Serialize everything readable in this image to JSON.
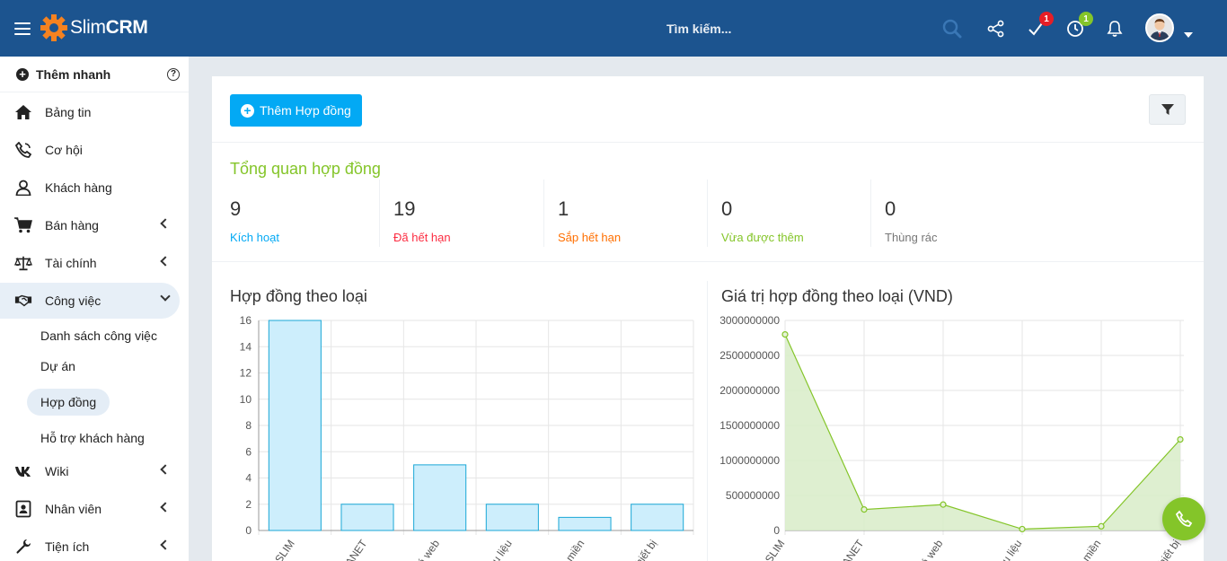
{
  "app": {
    "logo_light": "Slim",
    "logo_bold": "CRM",
    "brand_color": "#1c548f"
  },
  "header": {
    "search_placeholder": "Tìm kiếm...",
    "tasks_badge": "1",
    "timer_badge": "1"
  },
  "sidebar": {
    "quick_add": "Thêm nhanh",
    "items": [
      {
        "label": "Bảng tin",
        "icon": "home-icon"
      },
      {
        "label": "Cơ hội",
        "icon": "phone-icon"
      },
      {
        "label": "Khách hàng",
        "icon": "user-icon"
      },
      {
        "label": "Bán hàng",
        "icon": "cart-icon"
      },
      {
        "label": "Tài chính",
        "icon": "balance-scale-icon"
      },
      {
        "label": "Công việc",
        "icon": "handshake-icon"
      },
      {
        "label": "Wiki",
        "icon": "vk-icon"
      },
      {
        "label": "Nhân viên",
        "icon": "id-card-icon"
      },
      {
        "label": "Tiện ích",
        "icon": "wrench-icon"
      }
    ],
    "sub_items": [
      {
        "label": "Danh sách công việc"
      },
      {
        "label": "Dự án"
      },
      {
        "label": "Hợp đồng"
      },
      {
        "label": "Hỗ trợ khách hàng"
      }
    ]
  },
  "main": {
    "add_button": "Thêm Hợp đồng",
    "overview_title": "Tổng quan hợp đồng",
    "stats": [
      {
        "value": "9",
        "label": "Kích hoạt",
        "color": "#03a9f4"
      },
      {
        "value": "19",
        "label": "Đã hết hạn",
        "color": "#fc2d42"
      },
      {
        "value": "1",
        "label": "Sắp hết hạn",
        "color": "#ff6f00"
      },
      {
        "value": "0",
        "label": "Vừa được thêm",
        "color": "#84c529"
      },
      {
        "value": "0",
        "label": "Thùng rác",
        "color": "#777777"
      }
    ]
  },
  "chart_data": [
    {
      "type": "bar",
      "title": "Hợp đồng theo loại",
      "categories": [
        "SLIM",
        "ANET",
        "á web",
        "ữu liệu",
        "miền",
        "hiết bị"
      ],
      "values": [
        16,
        2,
        5,
        2,
        1,
        2
      ],
      "ylim": [
        0,
        16
      ],
      "yticks": [
        "0",
        "2",
        "4",
        "6",
        "8",
        "10",
        "12",
        "14",
        "16"
      ],
      "bar_fill": "#cdeefc",
      "bar_stroke": "#1aa7d6",
      "grid": true
    },
    {
      "type": "area",
      "title": "Giá trị hợp đồng theo loại (VND)",
      "categories": [
        "SLIM",
        "ANET",
        "á web",
        "ữu liệu",
        "miền",
        "hiết bị"
      ],
      "values": [
        2800000000,
        300000000,
        370000000,
        20000000,
        60000000,
        1300000000
      ],
      "ylim": [
        0,
        3000000000
      ],
      "yticks": [
        "0",
        "500000000",
        "1000000000",
        "1500000000",
        "2000000000",
        "2500000000",
        "3000000000"
      ],
      "line_color": "#84c529",
      "fill_color": "#d8ecc8",
      "grid": true
    }
  ]
}
